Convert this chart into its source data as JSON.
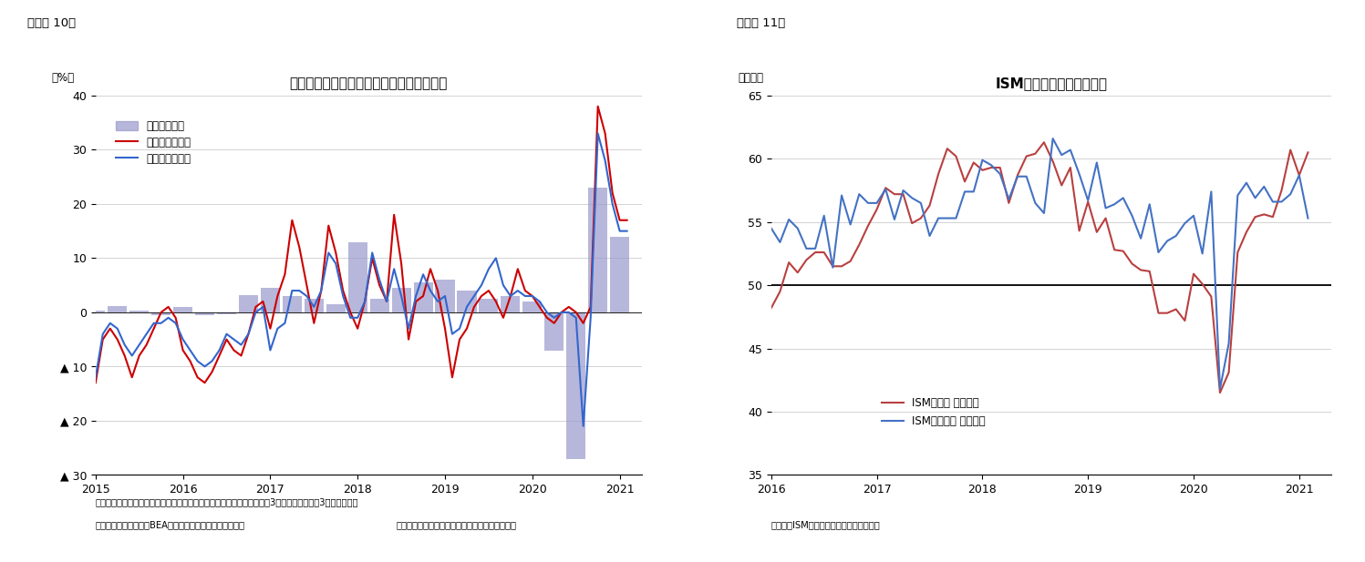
{
  "fig10": {
    "title": "米国製造業の耐久財受注・出荷と設備投資",
    "label_top": "（図表 10）",
    "ylabel": "（%）",
    "footnote1": "（注）コア資本財は国防・航空を除く資本財、コア資本財受注・出荷は3カ月移動平均後の3カ月前比年率",
    "footnote2": "（資料）センサス局、BEAよりニッセイ基礎研究所作成。",
    "footnote3": "（耐久財受注・出荷：月次、設備投資：四半期）",
    "ylim": [
      -30,
      40
    ],
    "yticks": [
      -30,
      -20,
      -10,
      0,
      10,
      20,
      30,
      40
    ],
    "ytick_labels": [
      "▲ 30",
      "▲ 20",
      "▲ 10",
      "0",
      "10",
      "20",
      "30",
      "40"
    ],
    "xlim_start": 2015.0,
    "xlim_end": 2021.25,
    "xticks": [
      2015,
      2016,
      2017,
      2018,
      2019,
      2020,
      2021
    ],
    "bar_color": "#9999cc",
    "line_orders_color": "#cc0000",
    "line_shipments_color": "#3366cc",
    "legend_labels": [
      "名目設備投資",
      "コア資本財受注",
      "コア資本財出荷"
    ],
    "bar_x": [
      2015.0,
      2015.25,
      2015.5,
      2015.75,
      2016.0,
      2016.25,
      2016.5,
      2016.75,
      2017.0,
      2017.25,
      2017.5,
      2017.75,
      2018.0,
      2018.25,
      2018.5,
      2018.75,
      2019.0,
      2019.25,
      2019.5,
      2019.75,
      2020.0,
      2020.25,
      2020.5,
      2020.75,
      2021.0
    ],
    "bar_vals": [
      0.3,
      1.2,
      0.3,
      -0.5,
      1.0,
      -0.5,
      -0.3,
      3.2,
      4.5,
      3.0,
      2.5,
      1.5,
      13.0,
      2.5,
      4.5,
      5.5,
      6.0,
      4.0,
      2.5,
      3.0,
      2.0,
      -7.0,
      -27.0,
      23.0,
      14.0
    ],
    "orders_x": [
      2015.0,
      2015.083,
      2015.167,
      2015.25,
      2015.333,
      2015.417,
      2015.5,
      2015.583,
      2015.667,
      2015.75,
      2015.833,
      2015.917,
      2016.0,
      2016.083,
      2016.167,
      2016.25,
      2016.333,
      2016.417,
      2016.5,
      2016.583,
      2016.667,
      2016.75,
      2016.833,
      2016.917,
      2017.0,
      2017.083,
      2017.167,
      2017.25,
      2017.333,
      2017.417,
      2017.5,
      2017.583,
      2017.667,
      2017.75,
      2017.833,
      2017.917,
      2018.0,
      2018.083,
      2018.167,
      2018.25,
      2018.333,
      2018.417,
      2018.5,
      2018.583,
      2018.667,
      2018.75,
      2018.833,
      2018.917,
      2019.0,
      2019.083,
      2019.167,
      2019.25,
      2019.333,
      2019.417,
      2019.5,
      2019.583,
      2019.667,
      2019.75,
      2019.833,
      2019.917,
      2020.0,
      2020.083,
      2020.167,
      2020.25,
      2020.333,
      2020.417,
      2020.5,
      2020.583,
      2020.667,
      2020.75,
      2020.833,
      2020.917,
      2021.0,
      2021.083
    ],
    "orders_y": [
      -13,
      -5,
      -3,
      -5,
      -8,
      -12,
      -8,
      -6,
      -3,
      0,
      1,
      -1,
      -7,
      -9,
      -12,
      -13,
      -11,
      -8,
      -5,
      -7,
      -8,
      -4,
      1,
      2,
      -3,
      3,
      7,
      17,
      12,
      5,
      -2,
      4,
      16,
      11,
      4,
      0,
      -3,
      2,
      10,
      5,
      2,
      18,
      9,
      -5,
      2,
      3,
      8,
      4,
      -3,
      -12,
      -5,
      -3,
      1,
      3,
      4,
      2,
      -1,
      3,
      8,
      4,
      3,
      1,
      -1,
      -2,
      0,
      1,
      0,
      -2,
      1,
      38,
      33,
      22,
      17,
      17
    ],
    "shipments_x": [
      2015.0,
      2015.083,
      2015.167,
      2015.25,
      2015.333,
      2015.417,
      2015.5,
      2015.583,
      2015.667,
      2015.75,
      2015.833,
      2015.917,
      2016.0,
      2016.083,
      2016.167,
      2016.25,
      2016.333,
      2016.417,
      2016.5,
      2016.583,
      2016.667,
      2016.75,
      2016.833,
      2016.917,
      2017.0,
      2017.083,
      2017.167,
      2017.25,
      2017.333,
      2017.417,
      2017.5,
      2017.583,
      2017.667,
      2017.75,
      2017.833,
      2017.917,
      2018.0,
      2018.083,
      2018.167,
      2018.25,
      2018.333,
      2018.417,
      2018.5,
      2018.583,
      2018.667,
      2018.75,
      2018.833,
      2018.917,
      2019.0,
      2019.083,
      2019.167,
      2019.25,
      2019.333,
      2019.417,
      2019.5,
      2019.583,
      2019.667,
      2019.75,
      2019.833,
      2019.917,
      2020.0,
      2020.083,
      2020.167,
      2020.25,
      2020.333,
      2020.417,
      2020.5,
      2020.583,
      2020.667,
      2020.75,
      2020.833,
      2020.917,
      2021.0,
      2021.083
    ],
    "shipments_y": [
      -12,
      -4,
      -2,
      -3,
      -6,
      -8,
      -6,
      -4,
      -2,
      -2,
      -1,
      -2,
      -5,
      -7,
      -9,
      -10,
      -9,
      -7,
      -4,
      -5,
      -6,
      -4,
      0,
      1,
      -7,
      -3,
      -2,
      4,
      4,
      3,
      1,
      4,
      11,
      9,
      3,
      -1,
      -1,
      2,
      11,
      6,
      2,
      8,
      3,
      -3,
      3,
      7,
      4,
      2,
      3,
      -4,
      -3,
      1,
      3,
      5,
      8,
      10,
      5,
      3,
      4,
      3,
      3,
      2,
      0,
      -1,
      0,
      0,
      -1,
      -21,
      -1,
      33,
      28,
      20,
      15,
      15
    ]
  },
  "fig11": {
    "title": "ISM製造業・非製造業指数",
    "label_top": "（図表 11）",
    "ylabel": "（指数）",
    "footnote": "（資料）ISMよりニッセイ基礎研究所作成",
    "ylim": [
      35,
      65
    ],
    "yticks": [
      35,
      40,
      45,
      50,
      55,
      60,
      65
    ],
    "xlim_start": 2016.0,
    "xlim_end": 2021.3,
    "xticks": [
      2016,
      2017,
      2018,
      2019,
      2020,
      2021
    ],
    "hline_y": 50,
    "mfg_color": "#b84040",
    "nonmfg_color": "#4472c4",
    "legend_labels": [
      "ISM製造業 総合指数",
      "ISM非製造業 総合指数"
    ],
    "mfg_x": [
      2016.0,
      2016.083,
      2016.167,
      2016.25,
      2016.333,
      2016.417,
      2016.5,
      2016.583,
      2016.667,
      2016.75,
      2016.833,
      2016.917,
      2017.0,
      2017.083,
      2017.167,
      2017.25,
      2017.333,
      2017.417,
      2017.5,
      2017.583,
      2017.667,
      2017.75,
      2017.833,
      2017.917,
      2018.0,
      2018.083,
      2018.167,
      2018.25,
      2018.333,
      2018.417,
      2018.5,
      2018.583,
      2018.667,
      2018.75,
      2018.833,
      2018.917,
      2019.0,
      2019.083,
      2019.167,
      2019.25,
      2019.333,
      2019.417,
      2019.5,
      2019.583,
      2019.667,
      2019.75,
      2019.833,
      2019.917,
      2020.0,
      2020.083,
      2020.167,
      2020.25,
      2020.333,
      2020.417,
      2020.5,
      2020.583,
      2020.667,
      2020.75,
      2020.833,
      2020.917,
      2021.0,
      2021.083
    ],
    "mfg_y": [
      48.2,
      49.5,
      51.8,
      51.0,
      52.0,
      52.6,
      52.6,
      51.5,
      51.5,
      51.9,
      53.2,
      54.7,
      56.0,
      57.7,
      57.2,
      57.2,
      54.9,
      55.3,
      56.3,
      58.8,
      60.8,
      60.2,
      58.2,
      59.7,
      59.1,
      59.3,
      59.3,
      56.5,
      58.7,
      60.2,
      60.4,
      61.3,
      59.8,
      57.9,
      59.3,
      54.3,
      56.6,
      54.2,
      55.3,
      52.8,
      52.7,
      51.7,
      51.2,
      51.1,
      47.8,
      47.8,
      48.1,
      47.2,
      50.9,
      50.1,
      49.1,
      41.5,
      43.1,
      52.6,
      54.2,
      55.4,
      55.6,
      55.4,
      57.5,
      60.7,
      58.7,
      60.5
    ],
    "nonmfg_x": [
      2016.0,
      2016.083,
      2016.167,
      2016.25,
      2016.333,
      2016.417,
      2016.5,
      2016.583,
      2016.667,
      2016.75,
      2016.833,
      2016.917,
      2017.0,
      2017.083,
      2017.167,
      2017.25,
      2017.333,
      2017.417,
      2017.5,
      2017.583,
      2017.667,
      2017.75,
      2017.833,
      2017.917,
      2018.0,
      2018.083,
      2018.167,
      2018.25,
      2018.333,
      2018.417,
      2018.5,
      2018.583,
      2018.667,
      2018.75,
      2018.833,
      2018.917,
      2019.0,
      2019.083,
      2019.167,
      2019.25,
      2019.333,
      2019.417,
      2019.5,
      2019.583,
      2019.667,
      2019.75,
      2019.833,
      2019.917,
      2020.0,
      2020.083,
      2020.167,
      2020.25,
      2020.333,
      2020.417,
      2020.5,
      2020.583,
      2020.667,
      2020.75,
      2020.833,
      2020.917,
      2021.0,
      2021.083
    ],
    "nonmfg_y": [
      54.5,
      53.4,
      55.2,
      54.5,
      52.9,
      52.9,
      55.5,
      51.4,
      57.1,
      54.8,
      57.2,
      56.5,
      56.5,
      57.6,
      55.2,
      57.5,
      56.9,
      56.5,
      53.9,
      55.3,
      55.3,
      55.3,
      57.4,
      57.4,
      59.9,
      59.5,
      58.8,
      56.8,
      58.6,
      58.6,
      56.5,
      55.7,
      61.6,
      60.3,
      60.7,
      58.8,
      56.7,
      59.7,
      56.1,
      56.4,
      56.9,
      55.5,
      53.7,
      56.4,
      52.6,
      53.5,
      53.9,
      54.9,
      55.5,
      52.5,
      57.4,
      41.8,
      45.4,
      57.1,
      58.1,
      56.9,
      57.8,
      56.6,
      56.6,
      57.2,
      58.7,
      55.3
    ]
  }
}
